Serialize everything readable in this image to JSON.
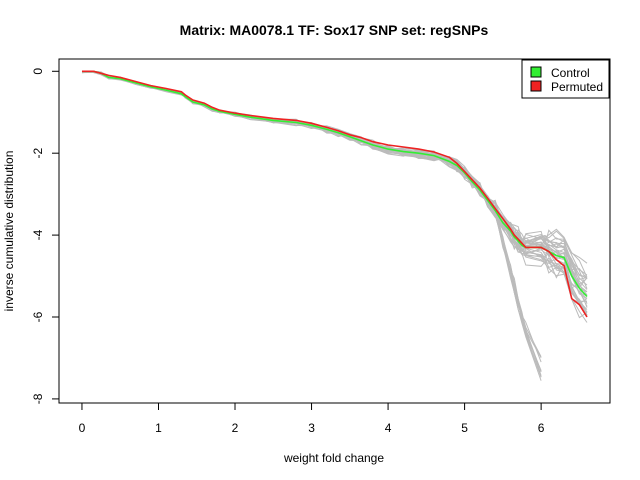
{
  "chart_data": {
    "type": "line",
    "title": "Matrix: MA0078.1 TF: Sox17 SNP set: regSNPs",
    "xlabel": "weight fold change",
    "ylabel": "inverse cumulative distribution",
    "xlim": [
      -0.3,
      6.9
    ],
    "ylim": [
      -8.1,
      0.3
    ],
    "xticks": [
      0,
      1,
      2,
      3,
      4,
      5,
      6
    ],
    "yticks": [
      0,
      -2,
      -4,
      -6,
      -8
    ],
    "legend_placement": "top-right",
    "colors": {
      "Control": "#33ee33",
      "Permuted": "#ee2222",
      "background_runs": "#bbbbbb"
    },
    "series": [
      {
        "name": "Control",
        "x": [
          0,
          0.15,
          0.25,
          0.35,
          0.5,
          0.7,
          0.9,
          1.1,
          1.3,
          1.35,
          1.45,
          1.6,
          1.7,
          1.8,
          2.0,
          2.2,
          2.5,
          2.8,
          3.0,
          3.2,
          3.35,
          3.5,
          3.65,
          3.8,
          4.0,
          4.2,
          4.4,
          4.6,
          4.8,
          4.9,
          5.0,
          5.1,
          5.2,
          5.3,
          5.4,
          5.5,
          5.6,
          5.65,
          5.7,
          5.75,
          5.8,
          6.0,
          6.05,
          6.1,
          6.2,
          6.3,
          6.4,
          6.5,
          6.6
        ],
        "y": [
          0,
          0,
          -0.05,
          -0.15,
          -0.18,
          -0.28,
          -0.38,
          -0.46,
          -0.55,
          -0.62,
          -0.75,
          -0.82,
          -0.92,
          -0.98,
          -1.05,
          -1.12,
          -1.2,
          -1.25,
          -1.32,
          -1.42,
          -1.5,
          -1.6,
          -1.7,
          -1.8,
          -1.9,
          -1.96,
          -2.0,
          -2.06,
          -2.2,
          -2.3,
          -2.48,
          -2.7,
          -2.9,
          -3.15,
          -3.4,
          -3.7,
          -3.9,
          -4.05,
          -4.15,
          -4.25,
          -4.3,
          -4.3,
          -4.35,
          -4.4,
          -4.5,
          -4.55,
          -5.0,
          -5.3,
          -5.5
        ]
      },
      {
        "name": "Permuted",
        "x": [
          0,
          0.15,
          0.25,
          0.35,
          0.5,
          0.7,
          0.9,
          1.1,
          1.3,
          1.35,
          1.45,
          1.6,
          1.7,
          1.8,
          2.0,
          2.2,
          2.5,
          2.8,
          3.0,
          3.2,
          3.35,
          3.5,
          3.65,
          3.8,
          4.0,
          4.2,
          4.4,
          4.6,
          4.8,
          4.9,
          5.0,
          5.1,
          5.2,
          5.3,
          5.4,
          5.5,
          5.6,
          5.65,
          5.7,
          5.75,
          5.8,
          6.0,
          6.05,
          6.1,
          6.2,
          6.3,
          6.4,
          6.5,
          6.6
        ],
        "y": [
          0,
          0,
          -0.05,
          -0.1,
          -0.15,
          -0.25,
          -0.35,
          -0.42,
          -0.5,
          -0.58,
          -0.7,
          -0.78,
          -0.88,
          -0.95,
          -1.02,
          -1.08,
          -1.15,
          -1.2,
          -1.27,
          -1.37,
          -1.45,
          -1.55,
          -1.62,
          -1.72,
          -1.8,
          -1.85,
          -1.9,
          -1.97,
          -2.1,
          -2.25,
          -2.45,
          -2.65,
          -2.85,
          -3.1,
          -3.35,
          -3.6,
          -3.85,
          -4.0,
          -4.1,
          -4.2,
          -4.3,
          -4.3,
          -4.35,
          -4.4,
          -4.6,
          -4.75,
          -5.55,
          -5.7,
          -6.0
        ]
      }
    ]
  }
}
